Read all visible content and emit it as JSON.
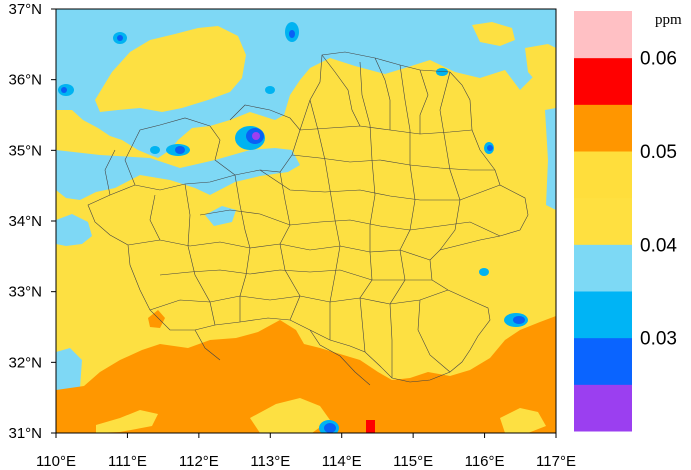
{
  "map": {
    "x_axis": {
      "labels": [
        "110°E",
        "111°E",
        "112°E",
        "113°E",
        "114°E",
        "115°E",
        "116°E",
        "117°E"
      ],
      "range": [
        110,
        117
      ]
    },
    "y_axis": {
      "labels": [
        "31°N",
        "32°N",
        "33°N",
        "34°N",
        "35°N",
        "36°N",
        "37°N"
      ],
      "range": [
        31,
        37
      ]
    }
  },
  "colorbar": {
    "unit": "ppm",
    "labels": [
      "0.03",
      "0.04",
      "0.05",
      "0.06"
    ],
    "bins": [
      {
        "name": "lt-0.025",
        "color": "#9b3ff0"
      },
      {
        "name": "0.025-0.03",
        "color": "#0a64ff"
      },
      {
        "name": "0.03-0.035",
        "color": "#00b4f5"
      },
      {
        "name": "0.035-0.04",
        "color": "#7dd9f5"
      },
      {
        "name": "0.04-0.045",
        "color": "#ffe040"
      },
      {
        "name": "0.045-0.05",
        "color": "#ffde3c"
      },
      {
        "name": "0.05-0.055",
        "color": "#ff9600"
      },
      {
        "name": "0.055-0.06",
        "color": "#ff0000"
      },
      {
        "name": "gt-0.06",
        "color": "#ffc0c4"
      }
    ]
  },
  "colors": {
    "yellow": "#fde042",
    "light_blue": "#7ed8f5",
    "cyan": "#00b3f1",
    "blue": "#0a60f5",
    "purple": "#9d3ff0",
    "orange": "#ff9700",
    "red": "#ff0000",
    "boundary": "#444444"
  }
}
